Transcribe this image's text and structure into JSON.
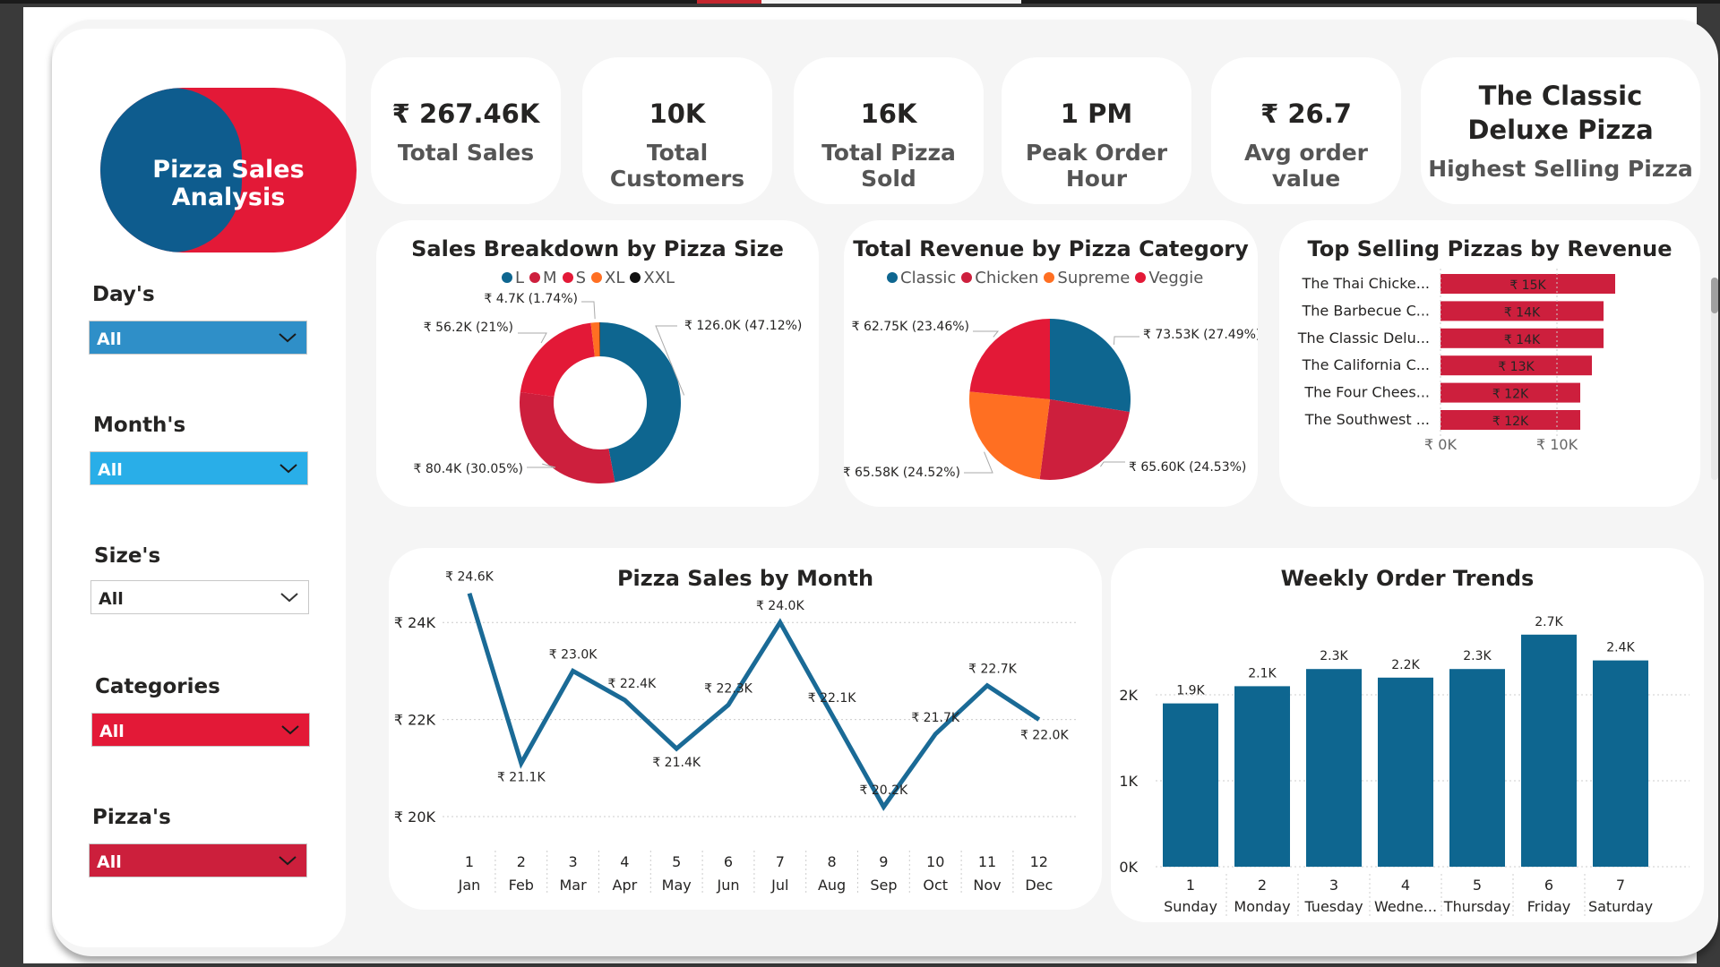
{
  "logo": {
    "text": "Pizza Sales Analysis",
    "colors": [
      "#0e5c8e",
      "#e31937"
    ]
  },
  "kpis": [
    {
      "value": "₹ 267.46K",
      "label": "Total Sales"
    },
    {
      "value": "10K",
      "label": "Total Customers"
    },
    {
      "value": "16K",
      "label": "Total Pizza Sold"
    },
    {
      "value": "1 PM",
      "label": "Peak Order Hour"
    },
    {
      "value": "₹ 26.7",
      "label": "Avg order value"
    },
    {
      "value": "The Classic Deluxe Pizza",
      "label": "Highest Selling Pizza"
    }
  ],
  "filters": [
    {
      "label": "Day's",
      "value": "All",
      "color": "#2f8fc8"
    },
    {
      "label": "Month's",
      "value": "All",
      "color": "#29aee8"
    },
    {
      "label": "Size's",
      "value": "All",
      "color": "#ffffff"
    },
    {
      "label": "Categories",
      "value": "All",
      "color": "#e31937"
    },
    {
      "label": "Pizza's",
      "value": "All",
      "color": "#cc1f3c"
    }
  ],
  "chart_data": [
    {
      "type": "pie",
      "variant": "donut",
      "title": "Sales Breakdown by Pizza Size",
      "legend": [
        {
          "name": "L",
          "color": "#0e6690"
        },
        {
          "name": "M",
          "color": "#cd1f3d"
        },
        {
          "name": "S",
          "color": "#e31937"
        },
        {
          "name": "XL",
          "color": "#ff6f22"
        },
        {
          "name": "XXL",
          "color": "#111111"
        }
      ],
      "slices": [
        {
          "name": "L",
          "value": 126.0,
          "label": "₹ 126.0K (47.12%)",
          "color": "#0e6690"
        },
        {
          "name": "M",
          "value": 80.4,
          "label": "₹ 80.4K (30.05%)",
          "color": "#cd1f3d"
        },
        {
          "name": "S",
          "value": 56.2,
          "label": "₹ 56.2K (21%)",
          "color": "#e31937"
        },
        {
          "name": "XL",
          "value": 4.7,
          "label": "₹ 4.7K (1.74%)",
          "color": "#ff6f22"
        },
        {
          "name": "XXL",
          "value": 0.3,
          "label": "",
          "color": "#111111"
        }
      ]
    },
    {
      "type": "pie",
      "title": "Total Revenue by Pizza Category",
      "legend": [
        {
          "name": "Classic",
          "color": "#0e6690"
        },
        {
          "name": "Chicken",
          "color": "#cd1f3d"
        },
        {
          "name": "Supreme",
          "color": "#ff6f22"
        },
        {
          "name": "Veggie",
          "color": "#e31937"
        }
      ],
      "slices": [
        {
          "name": "Classic",
          "value": 73.53,
          "label": "₹ 73.53K (27.49%)",
          "color": "#0e6690"
        },
        {
          "name": "Chicken",
          "value": 65.6,
          "label": "₹ 65.60K (24.53%)",
          "color": "#cd1f3d"
        },
        {
          "name": "Supreme",
          "value": 65.58,
          "label": "₹ 65.58K (24.52%)",
          "color": "#ff6f22"
        },
        {
          "name": "Veggie",
          "value": 62.75,
          "label": "₹ 62.75K (23.46%)",
          "color": "#e31937"
        }
      ]
    },
    {
      "type": "bar",
      "orientation": "horizontal",
      "title": "Top Selling Pizzas by Revenue",
      "categories": [
        "The Thai Chicke...",
        "The Barbecue C...",
        "The Classic Delu...",
        "The California C...",
        "The Four Chees...",
        "The Southwest ..."
      ],
      "values": [
        15,
        14,
        14,
        13,
        12,
        12
      ],
      "data_labels": [
        "₹ 15K",
        "₹ 14K",
        "₹ 14K",
        "₹ 13K",
        "₹ 12K",
        "₹ 12K"
      ],
      "xlim": [
        0,
        10
      ],
      "xticks": [
        "₹ 0K",
        "₹ 10K"
      ],
      "color": "#cd1f3d"
    },
    {
      "type": "line",
      "title": "Pizza Sales by Month",
      "x": [
        "1",
        "2",
        "3",
        "4",
        "5",
        "6",
        "7",
        "8",
        "9",
        "10",
        "11",
        "12"
      ],
      "x_names": [
        "Jan",
        "Feb",
        "Mar",
        "Apr",
        "May",
        "Jun",
        "Jul",
        "Aug",
        "Sep",
        "Oct",
        "Nov",
        "Dec"
      ],
      "values": [
        24.6,
        21.1,
        23.0,
        22.4,
        21.4,
        22.3,
        24.0,
        22.1,
        20.2,
        21.7,
        22.7,
        22.0
      ],
      "data_labels": [
        "₹ 24.6K",
        "₹ 21.1K",
        "₹ 23.0K",
        "₹ 22.4K",
        "₹ 21.4K",
        "₹ 22.3K",
        "₹ 24.0K",
        "₹ 22.1K",
        "₹ 20.2K",
        "₹ 21.7K",
        "₹ 22.7K",
        "₹ 22.0K"
      ],
      "yticks": [
        "₹ 20K",
        "₹ 22K",
        "₹ 24K"
      ],
      "ytick_values": [
        20,
        22,
        24
      ],
      "ylim": [
        20,
        24.6
      ],
      "color": "#1a6a96"
    },
    {
      "type": "bar",
      "title": "Weekly Order Trends",
      "x": [
        "1",
        "2",
        "3",
        "4",
        "5",
        "6",
        "7"
      ],
      "x_names": [
        "Sunday",
        "Monday",
        "Tuesday",
        "Wedne...",
        "Thursday",
        "Friday",
        "Saturday"
      ],
      "values": [
        1.9,
        2.1,
        2.3,
        2.2,
        2.3,
        2.7,
        2.4
      ],
      "data_labels": [
        "1.9K",
        "2.1K",
        "2.3K",
        "2.2K",
        "2.3K",
        "2.7K",
        "2.4K"
      ],
      "yticks": [
        "0K",
        "1K",
        "2K"
      ],
      "ytick_values": [
        0,
        1,
        2
      ],
      "ylim": [
        0,
        2.7
      ],
      "color": "#0e6690"
    }
  ]
}
